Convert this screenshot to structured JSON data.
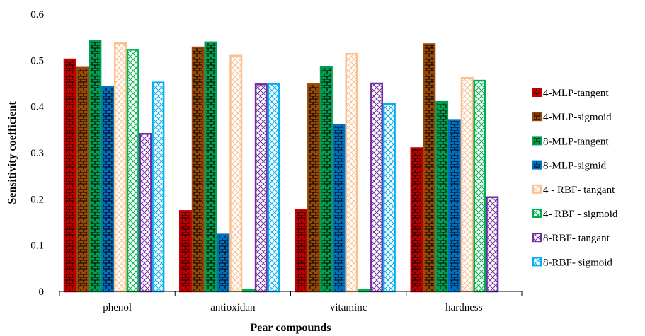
{
  "chart_data": {
    "type": "bar",
    "title": "",
    "xlabel": "Pear compounds",
    "ylabel": "Sensitivity coefficient",
    "ylim": [
      0,
      0.6
    ],
    "yticks": [
      0,
      0.1,
      0.2,
      0.3,
      0.4,
      0.5,
      0.6
    ],
    "ytick_labels": [
      "0",
      "0.1",
      "0.2",
      "0.3",
      "0.4",
      "0.5",
      "0.6"
    ],
    "grid": false,
    "legend_position": "right",
    "categories": [
      "phenol",
      "antioxidan",
      "vitaminc",
      "hardness"
    ],
    "series": [
      {
        "name": "4-MLP-tangent",
        "color": "#c00000",
        "pattern": "brick",
        "values": [
          0.502,
          0.174,
          0.177,
          0.31
        ]
      },
      {
        "name": "4-MLP-sigmoid",
        "color": "#984807",
        "pattern": "brick",
        "values": [
          0.484,
          0.528,
          0.448,
          0.535
        ]
      },
      {
        "name": "8-MLP-tangent",
        "color": "#00a050",
        "pattern": "brick",
        "values": [
          0.542,
          0.539,
          0.485,
          0.41
        ]
      },
      {
        "name": "8-MLP-sigmid",
        "color": "#0070c0",
        "pattern": "brick",
        "values": [
          0.442,
          0.123,
          0.36,
          0.371
        ]
      },
      {
        "name": "4 - RBF-  tangant",
        "color": "#fac090",
        "pattern": "diag",
        "values": [
          0.537,
          0.51,
          0.514,
          0.462
        ]
      },
      {
        "name": "4- RBF - sigmoid",
        "color": "#00b050",
        "pattern": "diag",
        "values": [
          0.523,
          0.003,
          0.003,
          0.456
        ]
      },
      {
        "name": "8-RBF- tangant",
        "color": "#7030a0",
        "pattern": "diag",
        "values": [
          0.341,
          0.448,
          0.45,
          0.204
        ]
      },
      {
        "name": "8-RBF- sigmoid",
        "color": "#00b0f0",
        "pattern": "diag",
        "values": [
          0.452,
          0.449,
          0.406,
          0.0
        ]
      }
    ]
  }
}
